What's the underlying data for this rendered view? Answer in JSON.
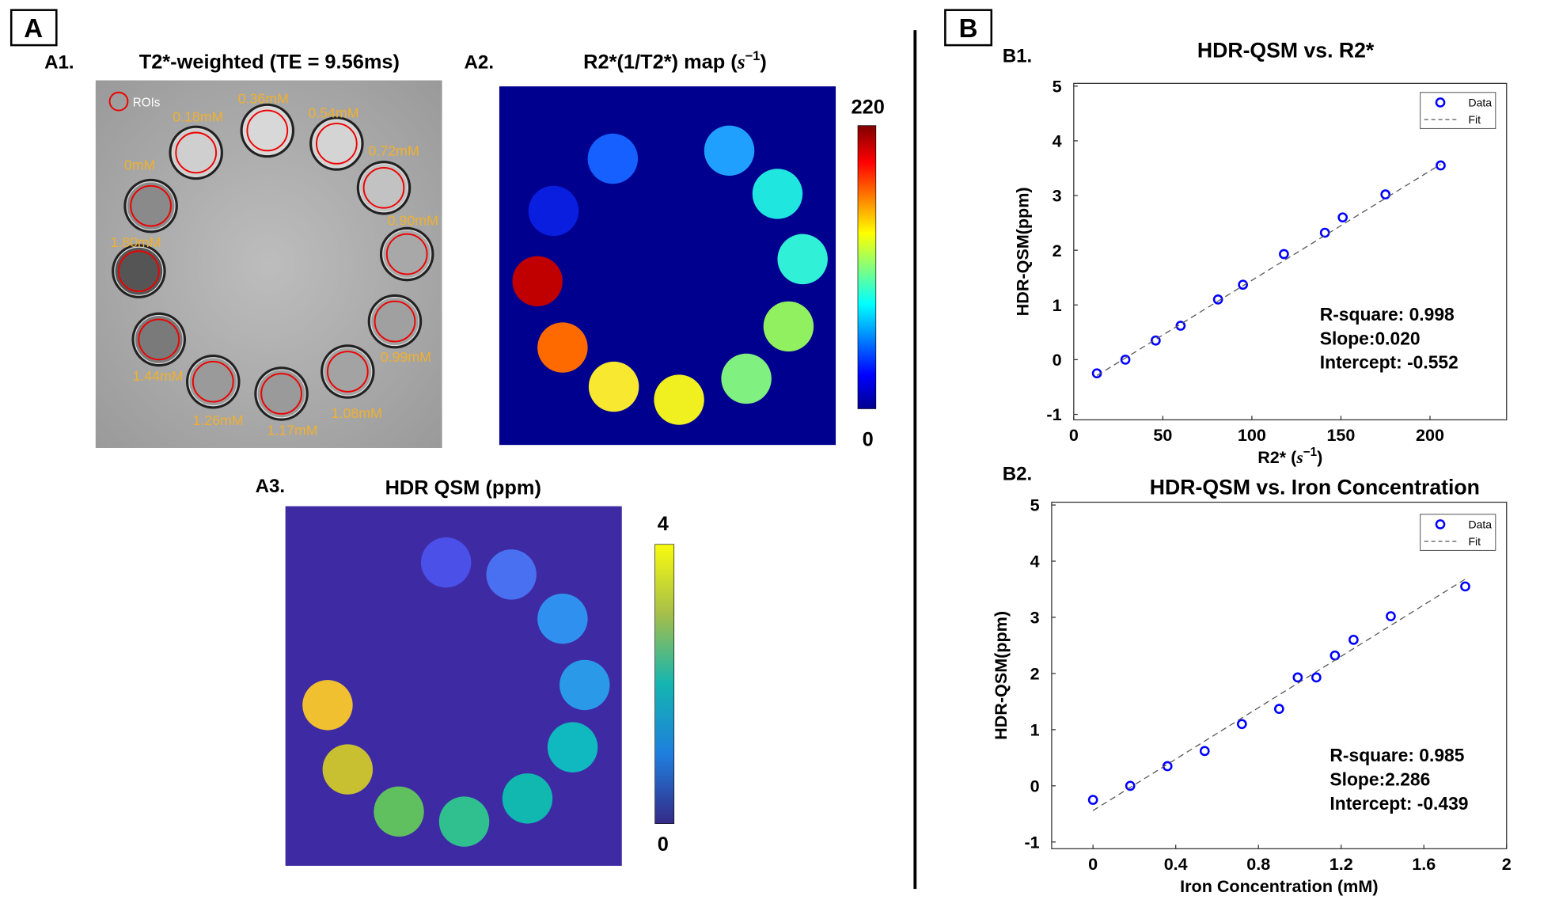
{
  "panels": {
    "A": {
      "label": "A",
      "A1": {
        "label": "A1.",
        "title": "T2*-weighted (TE = 9.56ms)",
        "legend": "ROIs",
        "concentrations": [
          "0.36mM",
          "0.54mM",
          "0.18mM",
          "0.72mM",
          "0mM",
          "0.90mM",
          "1.80mM",
          "0.99mM",
          "1.44mM",
          "1.26mM",
          "1.17mM",
          "1.08mM"
        ]
      },
      "A2": {
        "label": "A2.",
        "title": "R2*(1/T2*) map (",
        "unit": "s",
        "unit_exp": "−1",
        "title_end": ")",
        "colorbar_max": 220,
        "colorbar_min": 0
      },
      "A3": {
        "label": "A3.",
        "title": "HDR QSM (ppm)",
        "colorbar_max": 4,
        "colorbar_min": 0
      }
    },
    "B": {
      "label": "B",
      "B1": {
        "label": "B1."
      },
      "B2": {
        "label": "B2."
      }
    }
  },
  "chart_data": [
    {
      "type": "scatter",
      "title": "HDR-QSM vs. R2*",
      "xlabel": "R2* (",
      "xlabel_unit": "s",
      "xlabel_exp": "−1",
      "xlabel_end": ")",
      "ylabel": "HDR-QSM(ppm)",
      "xlim": [
        0,
        243
      ],
      "ylim": [
        -1.1,
        5.05
      ],
      "xticks": [
        0,
        50,
        100,
        150,
        200
      ],
      "yticks": [
        -1,
        0,
        1,
        2,
        3,
        4,
        5
      ],
      "legend": "upper right",
      "series": [
        {
          "name": "Data",
          "color": "#0000ff",
          "x": [
            13,
            29,
            46,
            60,
            81,
            95,
            118,
            141,
            151,
            175,
            206
          ],
          "values": [
            -0.25,
            0,
            0.35,
            0.62,
            1.1,
            1.37,
            1.93,
            2.32,
            2.6,
            3.02,
            3.55
          ]
        },
        {
          "name": "Fit",
          "color": "#555555",
          "x": [
            13,
            206
          ],
          "values": [
            -0.29,
            3.57
          ]
        }
      ],
      "annotations": [
        "R-square: 0.998",
        "Slope:0.020",
        "Intercept: -0.552"
      ]
    },
    {
      "type": "scatter",
      "title": "HDR-QSM vs. Iron Concentration",
      "xlabel": "Iron Concentration (mM)",
      "ylabel": "HDR-QSM(ppm)",
      "xlim": [
        -0.2,
        2
      ],
      "ylim": [
        -1.12,
        5.05
      ],
      "xticks": [
        0,
        0.4,
        0.8,
        1.2,
        1.6,
        2
      ],
      "yticks": [
        -1,
        0,
        1,
        2,
        3,
        4,
        5
      ],
      "legend": "upper right",
      "series": [
        {
          "name": "Data",
          "color": "#0000ff",
          "x": [
            0,
            0.18,
            0.36,
            0.54,
            0.72,
            0.9,
            0.99,
            1.08,
            1.17,
            1.26,
            1.44,
            1.8
          ],
          "values": [
            -0.25,
            0,
            0.35,
            0.62,
            1.1,
            1.37,
            1.93,
            1.93,
            2.32,
            2.6,
            3.02,
            3.55
          ]
        },
        {
          "name": "Fit",
          "color": "#555555",
          "x": [
            0,
            1.8
          ],
          "values": [
            -0.44,
            3.68
          ]
        }
      ],
      "annotations": [
        "R-square: 0.985",
        "Slope:2.286",
        "Intercept: -0.439"
      ]
    }
  ]
}
